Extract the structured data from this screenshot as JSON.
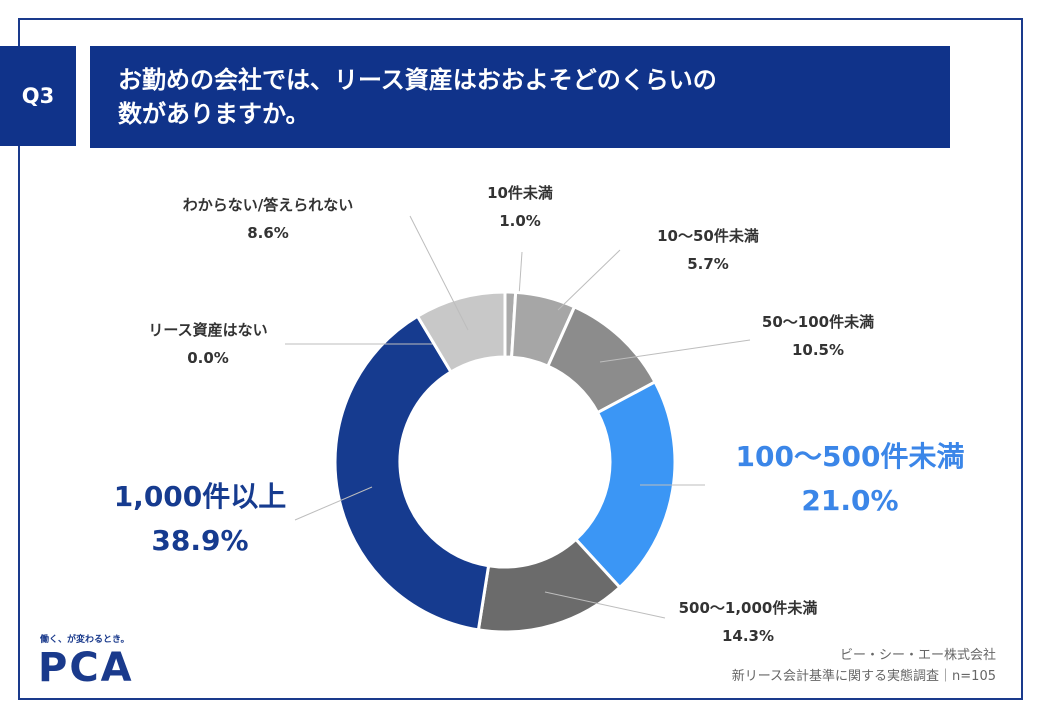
{
  "question_tag": "Q3",
  "title_line1": "お勤めの会社では、リース資産はおおよそどのくらいの",
  "title_line2": "数がありますか。",
  "logo": {
    "tagline": "働く、が変わるとき。",
    "name": "PCA"
  },
  "source": {
    "company": "ビー・シー・エー株式会社",
    "survey": "新リース会計基準に関する実態調査｜n=105"
  },
  "colors": {
    "header_bg": "#10338a",
    "frame": "#1a3a8c"
  },
  "chart_data": {
    "type": "pie",
    "variant": "donut",
    "slices": [
      {
        "label": "10件未満",
        "value": 1.0,
        "display": "1.0%",
        "color": "#aaaaaa"
      },
      {
        "label": "10〜50件未満",
        "value": 5.7,
        "display": "5.7%",
        "color": "#a6a6a6"
      },
      {
        "label": "50〜100件未満",
        "value": 10.5,
        "display": "10.5%",
        "color": "#8c8c8c"
      },
      {
        "label": "100〜500件未満",
        "value": 21.0,
        "display": "21.0%",
        "color": "#3b96f5"
      },
      {
        "label": "500〜1,000件未満",
        "value": 14.3,
        "display": "14.3%",
        "color": "#6b6b6b"
      },
      {
        "label": "1,000件以上",
        "value": 38.9,
        "display": "38.9%",
        "color": "#163b8f"
      },
      {
        "label": "リース資産はない",
        "value": 0.0,
        "display": "0.0%",
        "color": "#cfcfcf"
      },
      {
        "label": "わからない/答えられない",
        "value": 8.6,
        "display": "8.6%",
        "color": "#c8c8c8"
      }
    ]
  }
}
